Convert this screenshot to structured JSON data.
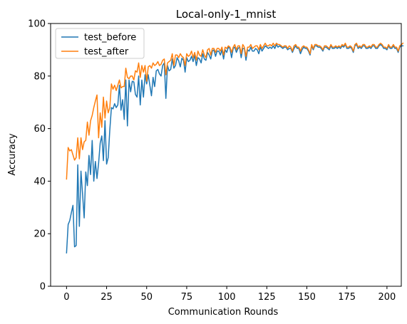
{
  "chart_data": {
    "type": "line",
    "title": "Local-only-1_mnist",
    "xlabel": "Communication Rounds",
    "ylabel": "Accuracy",
    "xlim": [
      -9.95,
      208.95
    ],
    "ylim": [
      0,
      100
    ],
    "xticks": [
      0,
      25,
      50,
      75,
      100,
      125,
      150,
      175,
      200
    ],
    "yticks": [
      0,
      20,
      40,
      60,
      80,
      100
    ],
    "grid": false,
    "legend": "top-left",
    "series": [
      {
        "name": "test_before",
        "color": "#1f77b4",
        "values": [
          12.7,
          23.5,
          25.0,
          28.0,
          30.8,
          15.0,
          15.5,
          46.2,
          22.8,
          43.8,
          35.0,
          26.0,
          43.5,
          38.3,
          49.8,
          42.5,
          55.5,
          40.0,
          47.5,
          41.0,
          46.8,
          54.5,
          57.2,
          47.8,
          63.0,
          46.5,
          49.0,
          59.5,
          68.0,
          67.5,
          69.5,
          68.0,
          69.0,
          76.5,
          67.0,
          71.0,
          63.5,
          78.5,
          61.0,
          78.5,
          74.0,
          78.0,
          77.8,
          73.0,
          72.0,
          80.0,
          69.0,
          78.5,
          72.0,
          80.5,
          77.0,
          80.5,
          76.5,
          72.5,
          79.5,
          76.0,
          82.0,
          82.5,
          80.8,
          80.0,
          84.0,
          85.0,
          71.5,
          84.0,
          82.0,
          82.5,
          86.5,
          83.0,
          84.0,
          87.0,
          85.8,
          83.5,
          86.8,
          86.0,
          81.5,
          87.0,
          85.5,
          86.0,
          87.5,
          85.5,
          88.0,
          84.0,
          87.0,
          86.5,
          85.0,
          88.5,
          86.5,
          86.0,
          89.0,
          88.0,
          86.5,
          89.5,
          90.0,
          87.5,
          89.5,
          89.5,
          88.0,
          90.0,
          86.5,
          90.0,
          89.0,
          91.0,
          90.5,
          87.0,
          90.5,
          91.0,
          89.0,
          90.5,
          91.0,
          87.0,
          90.5,
          90.5,
          86.0,
          90.0,
          89.5,
          91.0,
          89.5,
          89.5,
          90.5,
          90.0,
          88.5,
          91.0,
          89.5,
          90.5,
          91.5,
          91.0,
          90.5,
          91.0,
          90.5,
          91.5,
          90.5,
          92.0,
          91.0,
          91.5,
          91.0,
          90.5,
          91.0,
          91.0,
          90.0,
          90.5,
          90.5,
          89.0,
          90.5,
          91.5,
          90.5,
          90.5,
          88.5,
          90.0,
          91.0,
          90.5,
          90.5,
          89.5,
          88.0,
          91.5,
          90.0,
          91.5,
          91.5,
          91.0,
          91.0,
          90.5,
          89.5,
          91.0,
          91.0,
          90.5,
          90.0,
          91.5,
          90.5,
          90.5,
          91.0,
          90.5,
          91.0,
          90.5,
          91.5,
          91.0,
          92.0,
          90.5,
          90.5,
          91.0,
          90.5,
          89.0,
          91.5,
          92.0,
          90.5,
          91.0,
          90.5,
          91.5,
          91.5,
          90.5,
          90.5,
          91.0,
          90.5,
          91.5,
          91.5,
          90.5,
          90.5,
          91.5,
          92.0,
          91.5,
          90.5,
          90.5,
          90.0,
          91.5,
          90.5,
          90.5,
          91.5,
          90.5,
          90.5,
          89.0,
          91.0,
          91.5,
          91.5
        ]
      },
      {
        "name": "test_after",
        "color": "#ff7f0e",
        "values": [
          40.8,
          52.8,
          51.5,
          52.0,
          50.0,
          48.0,
          49.0,
          56.5,
          48.5,
          56.5,
          52.0,
          55.0,
          55.5,
          62.5,
          57.5,
          63.0,
          65.0,
          68.0,
          70.5,
          72.8,
          56.5,
          66.0,
          60.5,
          72.0,
          64.0,
          70.5,
          66.0,
          68.0,
          77.0,
          75.0,
          76.5,
          74.5,
          76.5,
          78.5,
          75.5,
          76.0,
          76.0,
          83.0,
          79.5,
          79.0,
          80.0,
          80.0,
          78.5,
          82.0,
          81.5,
          85.0,
          79.5,
          84.0,
          81.5,
          84.0,
          78.0,
          83.5,
          84.0,
          83.0,
          85.0,
          84.0,
          84.5,
          85.5,
          84.0,
          84.5,
          86.0,
          86.5,
          80.5,
          85.0,
          85.5,
          86.0,
          88.5,
          84.0,
          88.0,
          88.0,
          87.0,
          88.5,
          87.5,
          87.0,
          84.0,
          88.5,
          87.5,
          88.0,
          89.5,
          87.0,
          89.0,
          86.0,
          89.5,
          88.0,
          87.5,
          90.0,
          88.0,
          87.0,
          90.0,
          90.5,
          88.0,
          90.5,
          90.5,
          89.0,
          90.5,
          90.5,
          89.5,
          91.0,
          88.0,
          91.0,
          90.5,
          91.5,
          91.0,
          89.0,
          91.0,
          92.0,
          90.0,
          91.5,
          91.5,
          88.5,
          92.0,
          91.0,
          87.5,
          91.0,
          91.0,
          92.0,
          90.5,
          91.0,
          91.5,
          91.5,
          90.0,
          92.0,
          90.5,
          91.5,
          92.5,
          91.5,
          91.5,
          92.0,
          91.5,
          92.5,
          91.5,
          92.5,
          92.0,
          92.0,
          91.5,
          91.0,
          91.5,
          91.5,
          90.5,
          91.5,
          91.0,
          89.5,
          91.5,
          92.0,
          91.0,
          91.0,
          89.5,
          91.0,
          91.5,
          91.0,
          91.0,
          90.0,
          88.5,
          92.0,
          90.5,
          92.0,
          92.0,
          91.5,
          91.5,
          91.0,
          90.0,
          91.5,
          91.5,
          91.0,
          90.5,
          92.0,
          91.0,
          91.0,
          91.5,
          91.0,
          91.5,
          91.0,
          92.0,
          91.5,
          92.5,
          91.0,
          91.0,
          91.5,
          91.0,
          89.5,
          92.0,
          92.5,
          91.0,
          91.5,
          91.0,
          92.0,
          92.0,
          91.0,
          91.0,
          91.5,
          91.0,
          92.0,
          92.0,
          91.0,
          91.0,
          92.0,
          92.5,
          92.0,
          91.0,
          91.0,
          90.5,
          92.0,
          91.0,
          91.0,
          92.0,
          91.0,
          91.0,
          89.5,
          91.5,
          92.0,
          92.5
        ]
      }
    ]
  }
}
